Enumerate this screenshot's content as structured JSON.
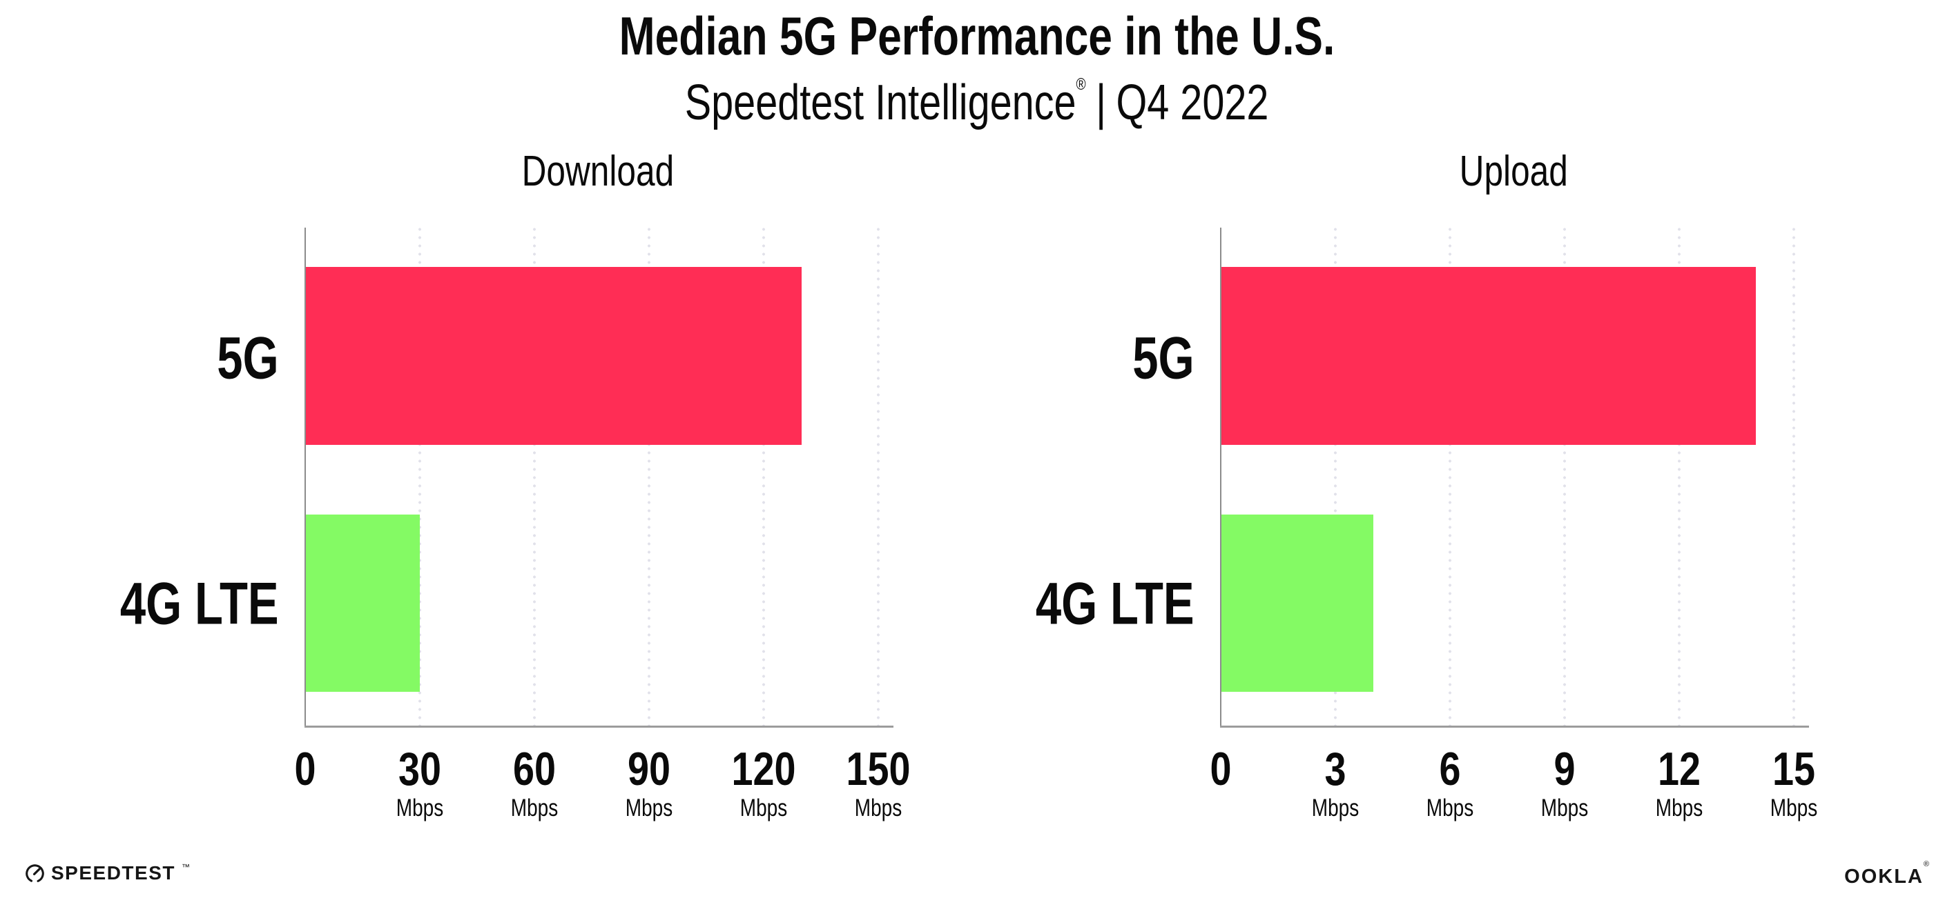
{
  "header": {
    "title": "Median 5G Performance in the U.S.",
    "subtitle_brand": "Speedtest Intelligence",
    "subtitle_reg": "®",
    "subtitle_sep": "|",
    "subtitle_period": "Q4 2022"
  },
  "chart_data": [
    {
      "type": "bar",
      "orientation": "horizontal",
      "title": "Download",
      "categories": [
        "5G",
        "4G LTE"
      ],
      "values": [
        130,
        30
      ],
      "unit": "Mbps",
      "xlim": [
        0,
        150
      ],
      "xticks": [
        0,
        30,
        60,
        90,
        120,
        150
      ],
      "bar_colors": [
        "#FF2D55",
        "#84FA64"
      ],
      "grid": "dotted-vertical",
      "legend": "none"
    },
    {
      "type": "bar",
      "orientation": "horizontal",
      "title": "Upload",
      "categories": [
        "5G",
        "4G LTE"
      ],
      "values": [
        14,
        4
      ],
      "unit": "Mbps",
      "xlim": [
        0,
        15
      ],
      "xticks": [
        0,
        3,
        6,
        9,
        12,
        15
      ],
      "bar_colors": [
        "#FF2D55",
        "#84FA64"
      ],
      "grid": "dotted-vertical",
      "legend": "none"
    }
  ],
  "colors": {
    "bar_5g": "#FF2D55",
    "bar_4g": "#84FA64",
    "axis": "#9c9c9c",
    "gridline": "#e1e1ea",
    "text": "#0a0a0a"
  },
  "footer": {
    "speedtest": {
      "label": "SPEEDTEST",
      "mark": "™"
    },
    "ookla": {
      "label": "OOKLA",
      "mark": "®"
    }
  }
}
